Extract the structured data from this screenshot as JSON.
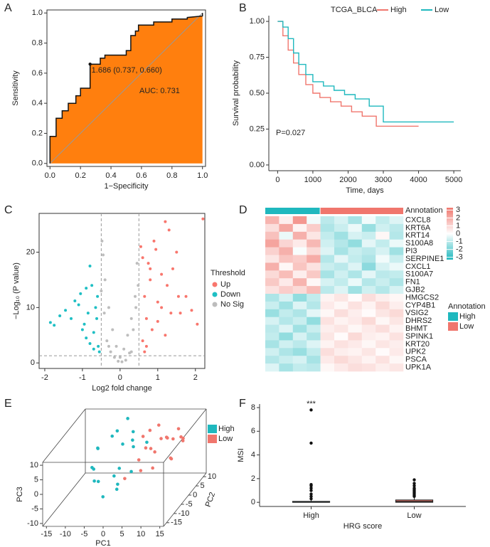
{
  "chart_data": [
    {
      "type": "roc",
      "label": "A",
      "x_label": "1−Specificity",
      "y_label": "Sensitivity",
      "x": [
        0,
        0,
        0.04,
        0.04,
        0.08,
        0.08,
        0.12,
        0.12,
        0.17,
        0.17,
        0.2,
        0.2,
        0.263,
        0.263,
        0.33,
        0.33,
        0.36,
        0.36,
        0.5,
        0.5,
        0.53,
        0.53,
        0.56,
        0.56,
        0.58,
        0.58,
        0.68,
        0.68,
        0.8,
        0.8,
        0.9,
        0.9,
        1,
        1
      ],
      "y": [
        0,
        0.18,
        0.18,
        0.3,
        0.3,
        0.35,
        0.35,
        0.4,
        0.4,
        0.45,
        0.45,
        0.5,
        0.5,
        0.66,
        0.66,
        0.7,
        0.7,
        0.72,
        0.72,
        0.75,
        0.75,
        0.85,
        0.85,
        0.88,
        0.88,
        0.92,
        0.92,
        0.94,
        0.94,
        0.96,
        0.96,
        0.97,
        0.98,
        1
      ],
      "color": "#ff7f0e",
      "cutoff_point": {
        "x": 0.263,
        "y": 0.66
      },
      "cutoff_label": "1.686 (0.737, 0.660)",
      "auc_label": "AUC: 0.731",
      "xlim": [
        -0.02,
        1.02
      ],
      "ylim": [
        -0.02,
        1.02
      ],
      "xticks": [
        {
          "value": 0,
          "label": "0.0"
        },
        {
          "value": 0.2,
          "label": "0.2"
        },
        {
          "value": 0.4,
          "label": "0.4"
        },
        {
          "value": 0.6,
          "label": "0.6"
        },
        {
          "value": 0.8,
          "label": "0.8"
        },
        {
          "value": 1,
          "label": "1.0"
        }
      ],
      "yticks": [
        {
          "value": 0,
          "label": "0.0"
        },
        {
          "value": 0.2,
          "label": "0.2"
        },
        {
          "value": 0.4,
          "label": "0.4"
        },
        {
          "value": 0.6,
          "label": "0.6"
        },
        {
          "value": 0.8,
          "label": "0.8"
        },
        {
          "value": 1,
          "label": "1.0"
        }
      ]
    },
    {
      "type": "survival",
      "label": "B",
      "legend_title": "TCGA_BLCA",
      "x_label": "Time, days",
      "y_label": "Survival probability",
      "annotation": "P=0.027",
      "series": [
        {
          "name": "High",
          "color": "#f0766d",
          "x": [
            0,
            150,
            150,
            300,
            300,
            450,
            450,
            600,
            600,
            800,
            800,
            1000,
            1000,
            1200,
            1200,
            1500,
            1500,
            1800,
            1800,
            2100,
            2100,
            2400,
            2400,
            2800,
            2800,
            4000
          ],
          "values": [
            1,
            1,
            0.9,
            0.9,
            0.8,
            0.8,
            0.71,
            0.71,
            0.63,
            0.63,
            0.56,
            0.56,
            0.5,
            0.5,
            0.47,
            0.47,
            0.44,
            0.44,
            0.41,
            0.41,
            0.37,
            0.37,
            0.34,
            0.34,
            0.27,
            0.27
          ]
        },
        {
          "name": "Low",
          "color": "#1fb8be",
          "x": [
            0,
            150,
            150,
            300,
            300,
            450,
            450,
            600,
            600,
            800,
            800,
            1000,
            1000,
            1300,
            1300,
            1600,
            1600,
            1900,
            1900,
            2200,
            2200,
            2600,
            2600,
            3000,
            3000,
            5000
          ],
          "values": [
            1,
            1,
            0.96,
            0.96,
            0.88,
            0.88,
            0.78,
            0.78,
            0.7,
            0.7,
            0.63,
            0.63,
            0.58,
            0.58,
            0.55,
            0.55,
            0.52,
            0.52,
            0.49,
            0.49,
            0.46,
            0.46,
            0.41,
            0.41,
            0.3,
            0.3
          ]
        }
      ],
      "xlim": [
        -250,
        5200
      ],
      "ylim": [
        -0.04,
        1.04
      ],
      "xticks": [
        0,
        1000,
        2000,
        3000,
        4000,
        5000
      ],
      "yticks": [
        {
          "value": 0,
          "label": "0.00"
        },
        {
          "value": 0.25,
          "label": "0.25"
        },
        {
          "value": 0.5,
          "label": "0.50"
        },
        {
          "value": 0.75,
          "label": "0.75"
        },
        {
          "value": 1,
          "label": "1.00"
        }
      ]
    },
    {
      "type": "scatter",
      "label": "C",
      "x_label": "Log2 fold change",
      "y_label": "−Log₁₀ (P value)",
      "legend_title": "Threshold",
      "vlines": [
        -0.5,
        0.5
      ],
      "hline": 1.3,
      "series": [
        {
          "name": "Up",
          "color": "#f8766d",
          "x": [
            0.55,
            0.6,
            0.65,
            0.7,
            0.75,
            0.8,
            0.9,
            1.0,
            1.1,
            1.2,
            1.3,
            1.4,
            1.5,
            1.6,
            1.75,
            1.9,
            2.05,
            2.2,
            0.6,
            0.7,
            0.85,
            1.0,
            1.2,
            1.35,
            0.95,
            1.25,
            1.55,
            0.65,
            0.8,
            1.1
          ],
          "y": [
            21,
            19,
            12,
            8,
            18,
            15,
            22,
            11,
            16,
            25.5,
            24,
            17,
            20,
            9,
            12,
            9.5,
            7,
            26,
            4,
            3,
            6,
            7.5,
            5,
            9,
            20.5,
            14,
            12,
            2,
            17,
            10
          ]
        },
        {
          "name": "Down",
          "color": "#1fbfc4",
          "x": [
            -1.85,
            -1.75,
            -1.6,
            -1.45,
            -1.3,
            -1.2,
            -1.1,
            -1.05,
            -0.95,
            -0.9,
            -0.85,
            -0.8,
            -0.75,
            -0.7,
            -0.65,
            -0.6,
            -0.58,
            -0.55,
            -0.9,
            -1.0,
            -0.7,
            -0.62,
            -0.8
          ],
          "y": [
            7.3,
            6.8,
            8.5,
            9.5,
            8,
            11.2,
            10.5,
            12.5,
            7,
            13.5,
            9,
            17.5,
            14,
            5.5,
            10,
            12,
            3,
            2,
            4.5,
            6,
            2.5,
            8,
            3.5
          ]
        },
        {
          "name": "No Sig",
          "color": "#bdbdbd",
          "x": [
            -0.45,
            -0.4,
            -0.3,
            -0.2,
            -0.1,
            0,
            0.1,
            0.2,
            0.3,
            0.4,
            0.45,
            -0.48,
            0.48,
            -0.35,
            0.35,
            -0.25,
            0.25,
            -0.15,
            0.15,
            0.05,
            -0.05,
            -0.42,
            0.42,
            -0.5,
            0.3,
            -0.3
          ],
          "y": [
            19.5,
            15,
            10,
            6,
            3,
            1,
            2.5,
            5,
            8,
            12,
            18,
            22,
            14,
            4,
            6,
            2,
            1.8,
            1,
            0.5,
            0.2,
            0.3,
            9,
            10,
            13,
            2,
            3
          ]
        }
      ],
      "xlim": [
        -2.15,
        2.25
      ],
      "ylim": [
        -1,
        27
      ],
      "xticks": [
        -2,
        -1,
        0,
        1,
        2
      ],
      "yticks": [
        0,
        10,
        20
      ]
    },
    {
      "type": "heatmap",
      "label": "D",
      "annotation_title": "Annotation",
      "groups": [
        {
          "name": "High",
          "color": "#1fb8be",
          "columns": 4
        },
        {
          "name": "Low",
          "color": "#f0766d",
          "columns": 6
        }
      ],
      "rows": [
        "CXCL8",
        "KRT6A",
        "KRT14",
        "S100A8",
        "PI3",
        "SERPINE1",
        "CXCL1",
        "S100A7",
        "FN1",
        "GJB2",
        "HMGCS2",
        "CYP4B1",
        "VSIG2",
        "DHRS2",
        "BHMT",
        "SPINK1",
        "KRT20",
        "UPK2",
        "PSCA",
        "UPK1A"
      ],
      "values": [
        [
          1.8,
          0.4,
          2.5,
          -0.2,
          -1.0,
          -0.6,
          -1.3,
          -0.2,
          -0.9,
          -0.5
        ],
        [
          0.8,
          2.1,
          0.3,
          1.2,
          -1.2,
          -0.8,
          -0.3,
          -1.5,
          -0.7,
          -1.0
        ],
        [
          1.5,
          -0.3,
          1.9,
          0.6,
          -0.9,
          -1.4,
          -0.6,
          -0.8,
          0.2,
          -1.1
        ],
        [
          2.2,
          1.0,
          0.5,
          1.7,
          -0.7,
          -1.1,
          -1.6,
          -0.4,
          -0.9,
          -0.3
        ],
        [
          1.1,
          1.9,
          -0.1,
          0.9,
          -0.5,
          -1.3,
          -0.8,
          -1.0,
          -0.6,
          -1.4
        ],
        [
          0.6,
          1.4,
          1.2,
          2.0,
          -1.1,
          -0.4,
          -0.9,
          -1.2,
          -0.2,
          -0.8
        ],
        [
          1.9,
          0.2,
          1.4,
          0.7,
          -0.8,
          -1.0,
          -0.5,
          -1.7,
          -0.6,
          -0.3
        ],
        [
          0.9,
          1.6,
          0.4,
          1.3,
          -1.3,
          -0.7,
          -1.2,
          -0.4,
          -1.0,
          -0.9
        ],
        [
          1.3,
          0.5,
          1.8,
          0.2,
          -0.6,
          -0.9,
          -0.3,
          -1.1,
          -0.8,
          -1.2
        ],
        [
          0.7,
          1.2,
          0.9,
          1.6,
          -1.0,
          -0.5,
          -1.4,
          -0.7,
          -1.1,
          -0.6
        ],
        [
          -1.2,
          -0.6,
          -1.6,
          -0.9,
          0.3,
          0.6,
          0.1,
          0.8,
          0.4,
          0.2
        ],
        [
          -0.8,
          -1.4,
          -0.5,
          -1.1,
          0.5,
          0.2,
          0.7,
          0.3,
          0.9,
          0.4
        ],
        [
          -1.5,
          -0.9,
          -1.2,
          -0.4,
          0.2,
          0.8,
          0.4,
          0.1,
          0.6,
          0.9
        ],
        [
          -0.6,
          -1.1,
          -0.8,
          -1.6,
          0.7,
          0.3,
          0.5,
          0.9,
          0.2,
          0.6
        ],
        [
          -1.0,
          -0.5,
          -1.4,
          -0.8,
          0.4,
          0.6,
          0.2,
          0.5,
          0.8,
          0.3
        ],
        [
          -0.9,
          -1.6,
          -0.6,
          -1.2,
          0.6,
          0.1,
          0.9,
          0.4,
          0.3,
          0.7
        ],
        [
          -1.3,
          -0.7,
          -1.0,
          -0.5,
          0.3,
          0.7,
          0.5,
          0.2,
          0.6,
          0.4
        ],
        [
          -0.7,
          -1.2,
          -1.5,
          -0.9,
          0.8,
          0.4,
          0.3,
          0.6,
          0.1,
          0.5
        ],
        [
          -1.1,
          -0.8,
          -0.6,
          -1.3,
          0.5,
          0.9,
          0.6,
          0.3,
          0.7,
          0.2
        ],
        [
          -0.5,
          -1.3,
          -0.9,
          -1.0,
          0.2,
          0.5,
          0.8,
          0.7,
          0.4,
          0.6
        ]
      ],
      "colors": {
        "low": "#1fb8be",
        "mid": "#ffffff",
        "high": "#f0766d"
      },
      "clim": [
        -3.3,
        3.3
      ],
      "cticks": [
        -3,
        -2,
        -1,
        0,
        1,
        2,
        3
      ]
    },
    {
      "type": "scatter3d",
      "label": "E",
      "x_label": "PC1",
      "y_label": "PC2",
      "z_label": "PC3",
      "series": [
        {
          "name": "High",
          "color": "#1fb8be",
          "x": [
            -10,
            -8,
            -7,
            -6,
            -5,
            -4,
            -3,
            -2,
            -1,
            0,
            1,
            2,
            -6,
            -4,
            -2,
            0,
            -8,
            -3,
            3,
            -1
          ],
          "y": [
            5,
            0,
            -5,
            8,
            2,
            -10,
            4,
            -2,
            6,
            -6,
            1,
            -3,
            -8,
            10,
            -12,
            3,
            -4,
            0,
            5,
            -7
          ],
          "z": [
            2,
            5,
            -3,
            6,
            8,
            0,
            4,
            -6,
            7,
            2,
            5,
            -1,
            3,
            9,
            -4,
            6,
            1,
            -9,
            4,
            0
          ]
        },
        {
          "name": "Low",
          "color": "#f0766d",
          "x": [
            2,
            4,
            5,
            6,
            7,
            8,
            9,
            10,
            11,
            12,
            13,
            14,
            3,
            6,
            9,
            11,
            5,
            8,
            10,
            13
          ],
          "y": [
            5,
            -3,
            8,
            0,
            -6,
            10,
            3,
            -9,
            6,
            -2,
            4,
            0,
            -10,
            7,
            -5,
            9,
            2,
            -12,
            1,
            -4
          ],
          "z": [
            6,
            3,
            8,
            5,
            9,
            2,
            7,
            4,
            8,
            3,
            6,
            9,
            1,
            4,
            7,
            2,
            10,
            5,
            8,
            4
          ]
        }
      ],
      "xlim": [
        -16,
        16
      ],
      "ylim": [
        -17,
        12
      ],
      "zlim": [
        -11,
        11
      ],
      "xticks": [
        -15,
        -10,
        -5,
        0,
        5,
        10,
        15
      ],
      "yticks": [
        -15,
        -10,
        -5,
        0,
        5,
        10
      ],
      "zticks": [
        -10,
        -5,
        0,
        5,
        10
      ]
    },
    {
      "type": "box",
      "label": "F",
      "x_label": "HRG score",
      "y_label": "MSI",
      "annotation": "***",
      "categories": [
        "High",
        "Low"
      ],
      "colors": [
        "#1fb8be",
        "#f0766d"
      ],
      "boxes": [
        {
          "whisker_low": 0,
          "q1": 0,
          "median": 0.02,
          "q3": 0.08,
          "whisker_high": 0.2,
          "outliers": [
            0.3,
            0.5,
            0.7,
            1.0,
            1.2,
            1.4,
            1.5,
            5.0,
            7.8
          ]
        },
        {
          "whisker_low": 0,
          "q1": 0,
          "median": 0.07,
          "q3": 0.2,
          "whisker_high": 0.45,
          "outliers": [
            0.5,
            0.6,
            0.7,
            0.8,
            0.9,
            1.0,
            1.1,
            1.2,
            1.4,
            1.6,
            1.9
          ]
        }
      ],
      "ylim": [
        -0.35,
        8.3
      ],
      "yticks": [
        0,
        2,
        4,
        6,
        8
      ]
    }
  ]
}
